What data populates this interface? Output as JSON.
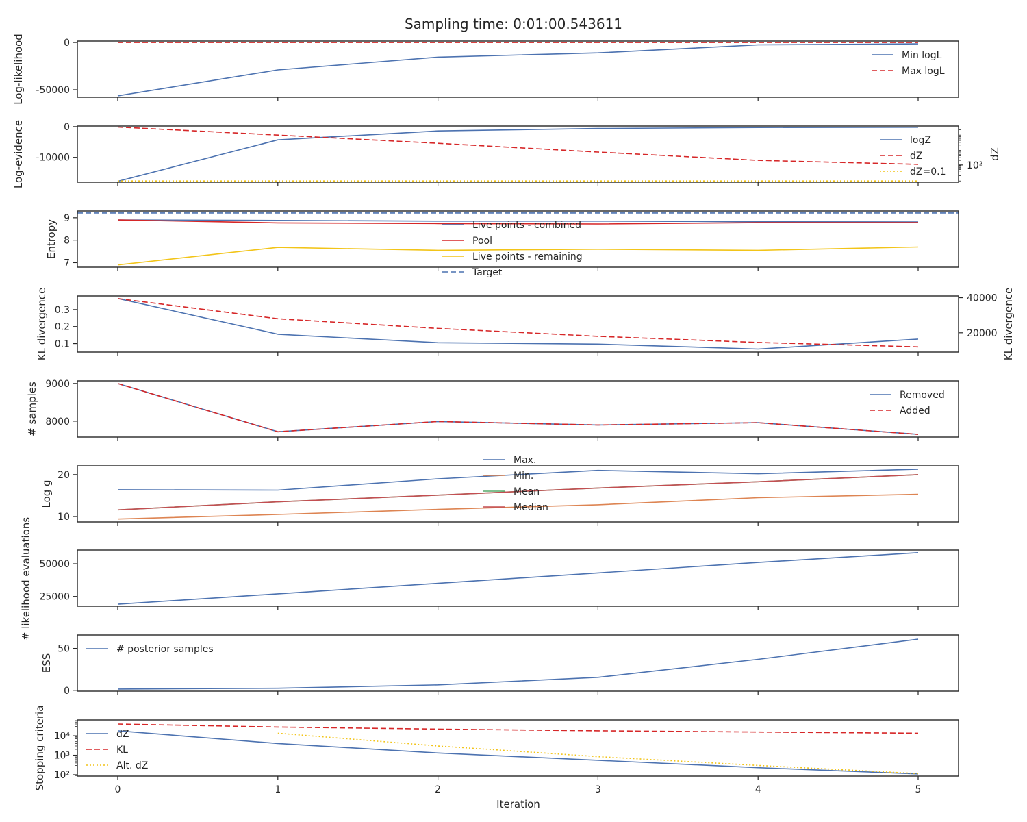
{
  "figure": {
    "title": "Sampling time: 0:01:00.543611",
    "xlabel": "Iteration",
    "x_ticks": [
      0,
      1,
      2,
      3,
      4,
      5
    ]
  },
  "colors": {
    "blue": "#4c72b0",
    "red": "#d62728",
    "yellow": "#f2c418",
    "orange": "#dd8452",
    "green": "#55a868",
    "darkred": "#c44e52"
  },
  "chart_data": [
    {
      "id": "loglikelihood",
      "type": "line",
      "ylabel": "Log-likelihood",
      "ylim": [
        -58000,
        1500
      ],
      "yticks": [
        0,
        -50000
      ],
      "legend": "top-right",
      "x": [
        0,
        1,
        2,
        3,
        4,
        5
      ],
      "series": [
        {
          "name": "Min logL",
          "values": [
            -56500,
            -29000,
            -15500,
            -11000,
            -2500,
            -1500
          ],
          "color": "blue",
          "dash": "solid"
        },
        {
          "name": "Max logL",
          "values": [
            -50,
            -40,
            -30,
            -20,
            -15,
            -10
          ],
          "color": "red",
          "dash": "dashed"
        }
      ]
    },
    {
      "id": "logevidence",
      "type": "line",
      "ylabel": "Log-evidence",
      "ylabel_right": "dZ",
      "ylim": [
        -18100,
        200
      ],
      "yticks": [
        0,
        -10000
      ],
      "right_scale": "log",
      "right_ylim": [
        7.5,
        35000
      ],
      "right_ticks": [
        100
      ],
      "right_tick_labels": [
        "10²"
      ],
      "legend": "right",
      "x": [
        0,
        1,
        2,
        3,
        4,
        5
      ],
      "series": [
        {
          "name": "logZ",
          "values": [
            -17800,
            -4300,
            -1400,
            -600,
            -300,
            -200
          ],
          "color": "blue",
          "dash": "solid",
          "axis": "left"
        },
        {
          "name": "dZ",
          "values": [
            30000,
            9000,
            2600,
            700,
            200,
            110
          ],
          "color": "red",
          "dash": "dashed",
          "axis": "right"
        },
        {
          "name": "dZ=0.1",
          "values": [
            9,
            9,
            9,
            9,
            9,
            9
          ],
          "color": "yellow",
          "dash": "dotted",
          "axis": "right"
        }
      ]
    },
    {
      "id": "entropy",
      "type": "line",
      "ylabel": "Entropy",
      "ylim": [
        6.8,
        9.3
      ],
      "yticks": [
        9,
        8,
        7
      ],
      "legend": "center",
      "x": [
        0,
        1,
        2,
        3,
        4,
        5
      ],
      "series": [
        {
          "name": "Live points - combined",
          "values": [
            8.9,
            8.88,
            8.85,
            8.85,
            8.82,
            8.81
          ],
          "color": "blue",
          "dash": "solid"
        },
        {
          "name": "Pool",
          "values": [
            8.9,
            8.77,
            8.74,
            8.72,
            8.78,
            8.78
          ],
          "color": "red",
          "dash": "solid"
        },
        {
          "name": "Live points - remaining",
          "values": [
            6.9,
            7.68,
            7.55,
            7.6,
            7.55,
            7.7
          ],
          "color": "yellow",
          "dash": "solid"
        },
        {
          "name": "Target",
          "values": [
            9.21,
            9.21,
            9.21,
            9.21,
            9.21,
            9.21
          ],
          "color": "blue",
          "dash": "dashed",
          "extend": true
        }
      ]
    },
    {
      "id": "kl",
      "type": "line",
      "ylabel": "KL divergence",
      "ylabel_right": "KL divergence",
      "ylim": [
        0.05,
        0.38
      ],
      "yticks": [
        0.3,
        0.2,
        0.1
      ],
      "right_scale": "linear",
      "right_ylim": [
        9000,
        41000
      ],
      "right_ticks": [
        40000,
        20000
      ],
      "right_tick_labels": [
        "40000",
        "20000"
      ],
      "x": [
        0,
        1,
        2,
        3,
        4,
        5
      ],
      "series": [
        {
          "values": [
            0.365,
            0.155,
            0.105,
            0.097,
            0.068,
            0.127
          ],
          "color": "blue",
          "dash": "solid",
          "axis": "left"
        },
        {
          "values": [
            39500,
            28000,
            22500,
            18000,
            14500,
            12000
          ],
          "color": "red",
          "dash": "dashed",
          "axis": "right"
        }
      ]
    },
    {
      "id": "samples",
      "type": "line",
      "ylabel": "# samples",
      "ylim": [
        7580,
        9070
      ],
      "yticks": [
        9000,
        8000
      ],
      "legend": "top-right",
      "x": [
        0,
        1,
        2,
        3,
        4,
        5
      ],
      "series": [
        {
          "name": "Removed",
          "values": [
            9000,
            7720,
            7990,
            7900,
            7960,
            7650
          ],
          "color": "blue",
          "dash": "solid"
        },
        {
          "name": "Added",
          "values": [
            9000,
            7720,
            7990,
            7900,
            7960,
            7650
          ],
          "color": "red",
          "dash": "dashed"
        }
      ]
    },
    {
      "id": "logg",
      "type": "line",
      "ylabel": "Log g",
      "ylim": [
        8.7,
        22.1
      ],
      "yticks": [
        20,
        10
      ],
      "legend": "top-center",
      "x": [
        0,
        1,
        2,
        3,
        4,
        5
      ],
      "series": [
        {
          "name": "Max.",
          "values": [
            16.4,
            16.3,
            19.0,
            21.0,
            20.2,
            21.3
          ],
          "color": "blue",
          "dash": "solid"
        },
        {
          "name": "Min.",
          "values": [
            9.4,
            10.5,
            11.7,
            12.8,
            14.5,
            15.3
          ],
          "color": "orange",
          "dash": "solid"
        },
        {
          "name": "Mean",
          "values": [
            11.6,
            13.5,
            15.1,
            16.8,
            18.3,
            20.0
          ],
          "color": "green",
          "dash": "solid"
        },
        {
          "name": "Median",
          "values": [
            11.6,
            13.5,
            15.1,
            16.8,
            18.3,
            20.0
          ],
          "color": "darkred",
          "dash": "solid"
        }
      ]
    },
    {
      "id": "likelihood_evals",
      "type": "line",
      "ylabel": "",
      "ylim": [
        17500,
        60500
      ],
      "yticks": [
        50000,
        25000
      ],
      "x": [
        0,
        1,
        2,
        3,
        4,
        5
      ],
      "series": [
        {
          "values": [
            19000,
            27000,
            35000,
            43000,
            51000,
            58500
          ],
          "color": "blue",
          "dash": "solid"
        }
      ]
    },
    {
      "id": "ess",
      "type": "line",
      "ylabel": "ESS",
      "shared_ylabel": "# likelihood evaluations",
      "ylim": [
        -1,
        66
      ],
      "yticks": [
        50,
        0
      ],
      "legend": "top-left",
      "x": [
        0,
        1,
        2,
        3,
        4,
        5
      ],
      "series": [
        {
          "name": "# posterior samples",
          "values": [
            1.5,
            2.5,
            6.5,
            15.5,
            37,
            61
          ],
          "color": "blue",
          "dash": "solid"
        }
      ]
    },
    {
      "id": "stopping",
      "type": "line",
      "ylabel": "Stopping criteria",
      "scale": "log",
      "ylim": [
        85,
        65000
      ],
      "yticks": [
        10000,
        1000,
        100
      ],
      "ytick_labels": [
        "10⁴",
        "10³",
        "10²"
      ],
      "legend": "left",
      "x": [
        0,
        1,
        2,
        3,
        4,
        5
      ],
      "series": [
        {
          "name": "dZ",
          "x": [
            0,
            1,
            2,
            3,
            4,
            5
          ],
          "values": [
            18000,
            4000,
            1300,
            550,
            230,
            110
          ],
          "color": "blue",
          "dash": "solid"
        },
        {
          "name": "KL",
          "x": [
            0,
            1,
            2,
            3,
            4,
            5
          ],
          "values": [
            40000,
            28000,
            22000,
            18000,
            15500,
            13500
          ],
          "color": "red",
          "dash": "dashed"
        },
        {
          "name": "Alt. dZ",
          "x": [
            1,
            2,
            3,
            4,
            5
          ],
          "values": [
            13500,
            3000,
            850,
            300,
            115
          ],
          "color": "yellow",
          "dash": "dotted"
        }
      ]
    }
  ]
}
